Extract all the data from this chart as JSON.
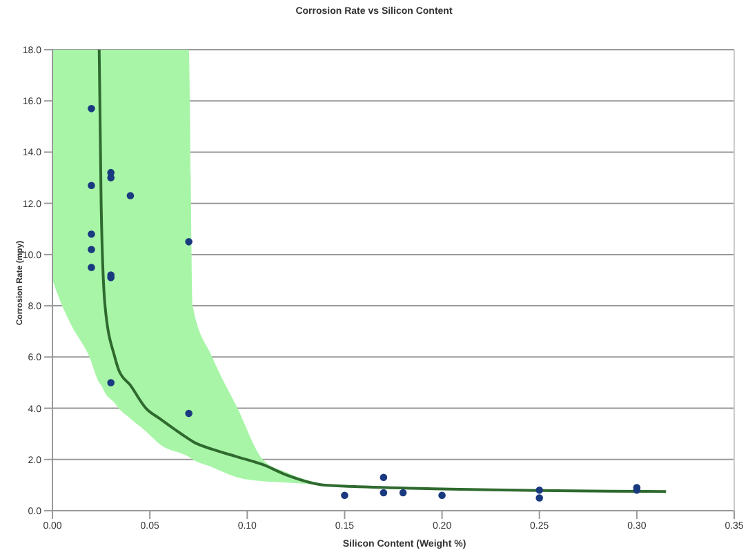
{
  "chart_data": {
    "type": "scatter",
    "title": "Corrosion Rate vs Silicon Content",
    "xlabel": "Silicon Content (Weight %)",
    "ylabel": "Corrosion Rate (mpy)",
    "xlim": [
      0,
      0.35
    ],
    "ylim": [
      0,
      18
    ],
    "xticks": [
      {
        "value": 0,
        "label": "0.00"
      },
      {
        "value": 0.05,
        "label": "0.05"
      },
      {
        "value": 0.1,
        "label": "0.10"
      },
      {
        "value": 0.15,
        "label": "0.15"
      },
      {
        "value": 0.2,
        "label": "0.20"
      },
      {
        "value": 0.25,
        "label": "0.25"
      },
      {
        "value": 0.3,
        "label": "0.30"
      },
      {
        "value": 0.35,
        "label": "0.35"
      }
    ],
    "yticks": [
      {
        "value": 0,
        "label": "0.0"
      },
      {
        "value": 2,
        "label": "2.0"
      },
      {
        "value": 4,
        "label": "4.0"
      },
      {
        "value": 6,
        "label": "6.0"
      },
      {
        "value": 8,
        "label": "8.0"
      },
      {
        "value": 10,
        "label": "10.0"
      },
      {
        "value": 12,
        "label": "12.0"
      },
      {
        "value": 14,
        "label": "14.0"
      },
      {
        "value": 16,
        "label": "16.0"
      },
      {
        "value": 18,
        "label": "18.0"
      }
    ],
    "grid": "y",
    "legend": false,
    "series": [
      {
        "type": "line",
        "color": "#2f6a2f",
        "marker": "none",
        "x": [
          0,
          0.005,
          0.01,
          0.019,
          0.024,
          0.025,
          0.027,
          0.032,
          0.034,
          0.04,
          0.048,
          0.055,
          0.07,
          0.072,
          0.082,
          0.095,
          0.108,
          0.12,
          0.14,
          0.2,
          0.315
        ],
        "values": [
          null,
          null,
          null,
          null,
          18,
          12,
          8,
          6,
          5.5,
          4.9,
          4.0,
          3.6,
          2.8,
          2.7,
          2.4,
          2.1,
          1.8,
          1.4,
          1.0,
          0.85,
          0.75
        ],
        "lower": [
          9,
          8,
          7.2,
          6,
          5.0,
          4.9,
          4.6,
          4.2,
          4.0,
          3.6,
          3.1,
          2.6,
          2.1,
          2.0,
          1.7,
          1.3,
          1.15,
          1.1,
          1.0,
          null,
          null
        ],
        "upper": [
          18,
          18,
          18,
          18,
          18,
          18,
          18,
          18,
          18,
          18,
          18,
          18,
          18,
          8,
          6,
          4,
          2,
          1.5,
          1.0,
          null,
          null
        ]
      },
      {
        "color": "#1a3a80",
        "marker": "circle",
        "x": [
          0.02,
          0.02,
          0.02,
          0.02,
          0.02,
          0.03,
          0.03,
          0.04,
          0.03,
          0.03,
          0.03,
          0.07,
          0.07,
          0.15,
          0.17,
          0.17,
          0.18,
          0.2,
          0.25,
          0.25,
          0.3,
          0.3
        ],
        "values": [
          15.7,
          12.7,
          10.8,
          10.2,
          9.5,
          13.2,
          13.0,
          12.3,
          9.2,
          9.1,
          5.0,
          10.5,
          3.8,
          0.6,
          1.3,
          0.7,
          0.7,
          0.6,
          0.8,
          0.5,
          0.9,
          0.8
        ]
      }
    ]
  }
}
